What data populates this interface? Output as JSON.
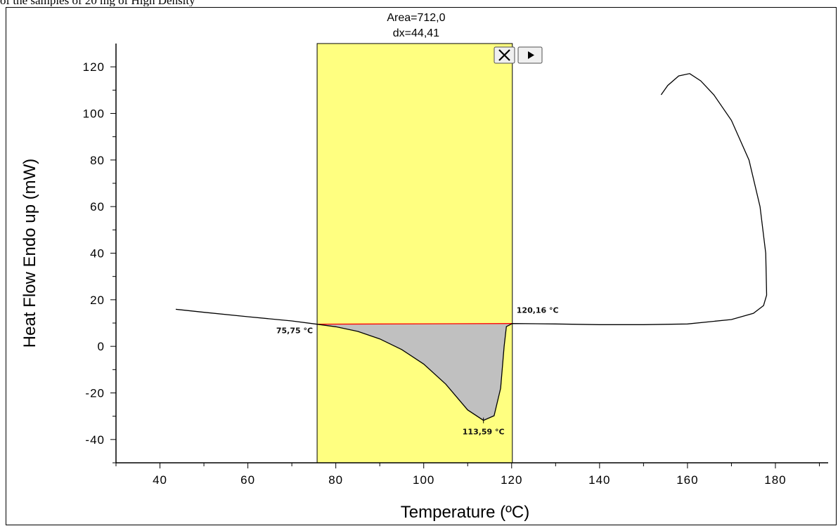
{
  "page": {
    "caption": "of the samples of 20 mg of High Density"
  },
  "toolbar": {
    "close_icon": "close-icon",
    "next_icon": "play-arrow-icon"
  },
  "chart_data": {
    "type": "line",
    "xlabel": "Temperature (ºC)",
    "ylabel": "Heat Flow Endo up (mW)",
    "xlim": [
      30,
      192
    ],
    "ylim": [
      -50,
      130
    ],
    "xticks": [
      40,
      60,
      80,
      100,
      120,
      140,
      160,
      180
    ],
    "yticks": [
      -40,
      -20,
      0,
      20,
      40,
      60,
      80,
      100,
      120
    ],
    "grid": false,
    "series": [
      {
        "values": [
          [
            43.6,
            15.9
          ],
          [
            50,
            14.6
          ],
          [
            60,
            12.7
          ],
          [
            70,
            10.9
          ],
          [
            75.75,
            9.5
          ],
          [
            80,
            8.4
          ],
          [
            85,
            6.4
          ],
          [
            90,
            3.2
          ],
          [
            95,
            -1.4
          ],
          [
            100,
            -7.6
          ],
          [
            105,
            -16.2
          ],
          [
            110,
            -27.3
          ],
          [
            113.59,
            -31.8
          ],
          [
            116,
            -29.8
          ],
          [
            117.5,
            -18
          ],
          [
            118.3,
            0
          ],
          [
            118.8,
            8.5
          ],
          [
            120.16,
            9.8
          ],
          [
            130,
            9.6
          ],
          [
            140,
            9.3
          ],
          [
            150,
            9.3
          ],
          [
            160,
            9.6
          ],
          [
            170,
            11.5
          ],
          [
            175,
            14.2
          ],
          [
            177.3,
            17.5
          ],
          [
            178,
            22
          ],
          [
            177.8,
            40
          ],
          [
            176.5,
            60
          ],
          [
            174,
            80
          ],
          [
            170,
            97
          ],
          [
            166,
            108
          ],
          [
            163,
            114
          ],
          [
            160.5,
            117.1
          ],
          [
            158,
            116.1
          ],
          [
            155.5,
            112
          ],
          [
            154,
            108
          ]
        ]
      }
    ],
    "baseline": {
      "x": [
        75.75,
        120.16
      ],
      "y": [
        9.5,
        9.8
      ],
      "color": "#ff0000"
    },
    "highlight_range": {
      "x": [
        75.75,
        120.16
      ],
      "color": "#ffff80"
    },
    "fill_color": "#c0c0c0",
    "annotations": {
      "area": "Area=712,0",
      "dx": "dx=44,41",
      "start": {
        "x": 75.75,
        "y": 9.5,
        "label": "75,75 °C"
      },
      "end": {
        "x": 120.16,
        "y": 9.8,
        "label": "120,16 °C"
      },
      "peak": {
        "x": 113.59,
        "y": -31.8,
        "label": "113,59 °C"
      }
    }
  }
}
